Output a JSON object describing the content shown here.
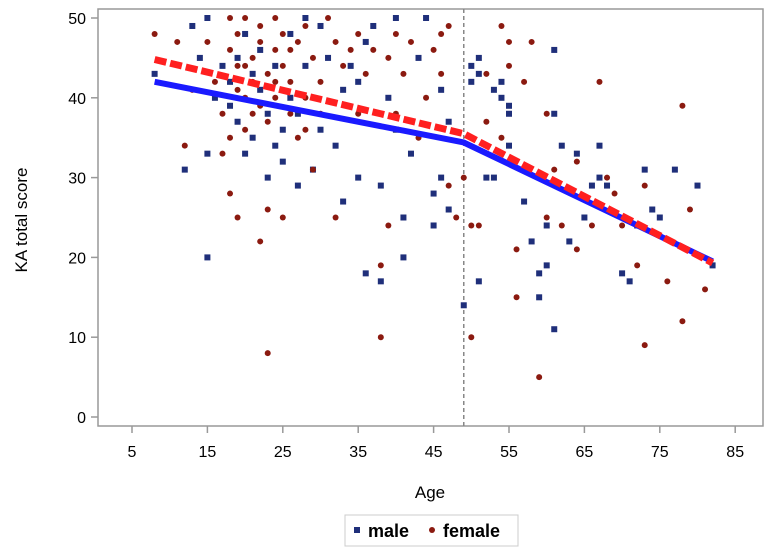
{
  "chart_data": {
    "type": "scatter",
    "title": "",
    "xlabel": "Age",
    "ylabel": "KA total score",
    "xlim": [
      0.5,
      93
    ],
    "ylim": [
      -1.2,
      51
    ],
    "xticks": [
      5,
      15,
      25,
      35,
      45,
      55,
      65,
      75,
      85
    ],
    "yticks": [
      0,
      10,
      20,
      30,
      40,
      50
    ],
    "grid": false,
    "legend": {
      "placement": "bottom-center",
      "entries": [
        "male",
        "female"
      ]
    },
    "reference_line_x": 49,
    "colors": {
      "male": "#1f2f7a",
      "female": "#8b1a10",
      "male_fit": "#1a1aff",
      "female_fit": "#ff2020"
    },
    "series": [
      {
        "name": "male",
        "marker": "square",
        "points": [
          [
            8,
            43
          ],
          [
            12,
            31
          ],
          [
            13,
            49
          ],
          [
            14,
            45
          ],
          [
            15,
            20
          ],
          [
            15,
            33
          ],
          [
            15,
            50
          ],
          [
            16,
            40
          ],
          [
            17,
            44
          ],
          [
            18,
            42
          ],
          [
            18,
            39
          ],
          [
            19,
            37
          ],
          [
            20,
            48
          ],
          [
            20,
            33
          ],
          [
            21,
            35
          ],
          [
            22,
            41
          ],
          [
            22,
            46
          ],
          [
            23,
            38
          ],
          [
            23,
            30
          ],
          [
            24,
            34
          ],
          [
            24,
            44
          ],
          [
            25,
            32
          ],
          [
            25,
            36
          ],
          [
            26,
            40
          ],
          [
            26,
            48
          ],
          [
            27,
            29
          ],
          [
            28,
            44
          ],
          [
            28,
            50
          ],
          [
            29,
            31
          ],
          [
            30,
            49
          ],
          [
            31,
            45
          ],
          [
            32,
            34
          ],
          [
            33,
            27
          ],
          [
            34,
            44
          ],
          [
            35,
            42
          ],
          [
            35,
            30
          ],
          [
            36,
            47
          ],
          [
            37,
            49
          ],
          [
            38,
            17
          ],
          [
            38,
            29
          ],
          [
            39,
            40
          ],
          [
            40,
            50
          ],
          [
            40,
            36
          ],
          [
            41,
            20
          ],
          [
            41,
            25
          ],
          [
            42,
            33
          ],
          [
            43,
            45
          ],
          [
            44,
            50
          ],
          [
            45,
            24
          ],
          [
            46,
            30
          ],
          [
            46,
            41
          ],
          [
            47,
            37
          ],
          [
            47,
            26
          ],
          [
            45,
            28
          ],
          [
            36,
            18
          ],
          [
            21,
            43
          ],
          [
            19,
            45
          ],
          [
            27,
            38
          ],
          [
            30,
            36
          ],
          [
            33,
            41
          ],
          [
            50,
            44
          ],
          [
            50,
            42
          ],
          [
            51,
            43
          ],
          [
            53,
            41
          ],
          [
            54,
            42
          ],
          [
            54,
            40
          ],
          [
            55,
            39
          ],
          [
            55,
            38
          ],
          [
            49,
            14
          ],
          [
            51,
            17
          ],
          [
            57,
            27
          ],
          [
            58,
            22
          ],
          [
            59,
            18
          ],
          [
            59,
            15
          ],
          [
            60,
            19
          ],
          [
            61,
            11
          ],
          [
            61,
            46
          ],
          [
            61,
            38
          ],
          [
            62,
            34
          ],
          [
            64,
            33
          ],
          [
            66,
            29
          ],
          [
            67,
            34
          ],
          [
            68,
            29
          ],
          [
            67,
            30
          ],
          [
            65,
            25
          ],
          [
            70,
            18
          ],
          [
            71,
            17
          ],
          [
            72,
            24
          ],
          [
            73,
            31
          ],
          [
            74,
            26
          ],
          [
            75,
            25
          ],
          [
            77,
            31
          ],
          [
            80,
            29
          ],
          [
            82,
            19
          ],
          [
            52,
            30
          ],
          [
            51,
            45
          ],
          [
            55,
            34
          ],
          [
            53,
            30
          ],
          [
            60,
            24
          ],
          [
            63,
            22
          ]
        ]
      },
      {
        "name": "female",
        "marker": "circle",
        "points": [
          [
            8,
            48
          ],
          [
            11,
            47
          ],
          [
            12,
            34
          ],
          [
            13,
            41
          ],
          [
            15,
            47
          ],
          [
            16,
            42
          ],
          [
            17,
            33
          ],
          [
            17,
            38
          ],
          [
            18,
            28
          ],
          [
            18,
            50
          ],
          [
            18,
            46
          ],
          [
            19,
            25
          ],
          [
            19,
            44
          ],
          [
            19,
            48
          ],
          [
            20,
            40
          ],
          [
            20,
            36
          ],
          [
            20,
            50
          ],
          [
            21,
            45
          ],
          [
            21,
            42
          ],
          [
            21,
            38
          ],
          [
            22,
            22
          ],
          [
            22,
            47
          ],
          [
            22,
            49
          ],
          [
            23,
            8
          ],
          [
            23,
            26
          ],
          [
            23,
            43
          ],
          [
            23,
            37
          ],
          [
            24,
            50
          ],
          [
            24,
            46
          ],
          [
            24,
            40
          ],
          [
            25,
            25
          ],
          [
            25,
            44
          ],
          [
            25,
            48
          ],
          [
            26,
            42
          ],
          [
            26,
            38
          ],
          [
            27,
            47
          ],
          [
            27,
            35
          ],
          [
            28,
            49
          ],
          [
            28,
            40
          ],
          [
            29,
            45
          ],
          [
            29,
            31
          ],
          [
            30,
            42
          ],
          [
            30,
            38
          ],
          [
            31,
            50
          ],
          [
            32,
            47
          ],
          [
            32,
            25
          ],
          [
            33,
            44
          ],
          [
            34,
            46
          ],
          [
            35,
            38
          ],
          [
            35,
            48
          ],
          [
            36,
            43
          ],
          [
            37,
            46
          ],
          [
            38,
            10
          ],
          [
            38,
            19
          ],
          [
            39,
            45
          ],
          [
            39,
            24
          ],
          [
            40,
            48
          ],
          [
            40,
            38
          ],
          [
            41,
            43
          ],
          [
            42,
            47
          ],
          [
            43,
            35
          ],
          [
            44,
            40
          ],
          [
            45,
            46
          ],
          [
            46,
            43
          ],
          [
            46,
            48
          ],
          [
            47,
            49
          ],
          [
            20,
            44
          ],
          [
            22,
            39
          ],
          [
            24,
            42
          ],
          [
            26,
            46
          ],
          [
            28,
            36
          ],
          [
            18,
            35
          ],
          [
            19,
            41
          ],
          [
            50,
            10
          ],
          [
            50,
            24
          ],
          [
            51,
            24
          ],
          [
            52,
            43
          ],
          [
            52,
            37
          ],
          [
            54,
            49
          ],
          [
            54,
            35
          ],
          [
            55,
            47
          ],
          [
            55,
            44
          ],
          [
            56,
            15
          ],
          [
            56,
            21
          ],
          [
            57,
            42
          ],
          [
            58,
            47
          ],
          [
            59,
            5
          ],
          [
            60,
            25
          ],
          [
            60,
            38
          ],
          [
            61,
            31
          ],
          [
            62,
            24
          ],
          [
            64,
            32
          ],
          [
            64,
            21
          ],
          [
            66,
            24
          ],
          [
            67,
            42
          ],
          [
            68,
            30
          ],
          [
            69,
            28
          ],
          [
            70,
            24
          ],
          [
            72,
            19
          ],
          [
            73,
            9
          ],
          [
            73,
            29
          ],
          [
            76,
            17
          ],
          [
            78,
            12
          ],
          [
            78,
            39
          ],
          [
            79,
            26
          ],
          [
            81,
            16
          ],
          [
            48,
            25
          ],
          [
            47,
            29
          ],
          [
            49,
            30
          ]
        ]
      }
    ],
    "fit_lines": [
      {
        "name": "male",
        "style": "solid",
        "points": [
          [
            8,
            42
          ],
          [
            49,
            34.4
          ],
          [
            82,
            19.5
          ]
        ]
      },
      {
        "name": "female",
        "style": "dashed",
        "points": [
          [
            8,
            44.8
          ],
          [
            49,
            35.5
          ],
          [
            82,
            19.3
          ]
        ]
      }
    ]
  }
}
